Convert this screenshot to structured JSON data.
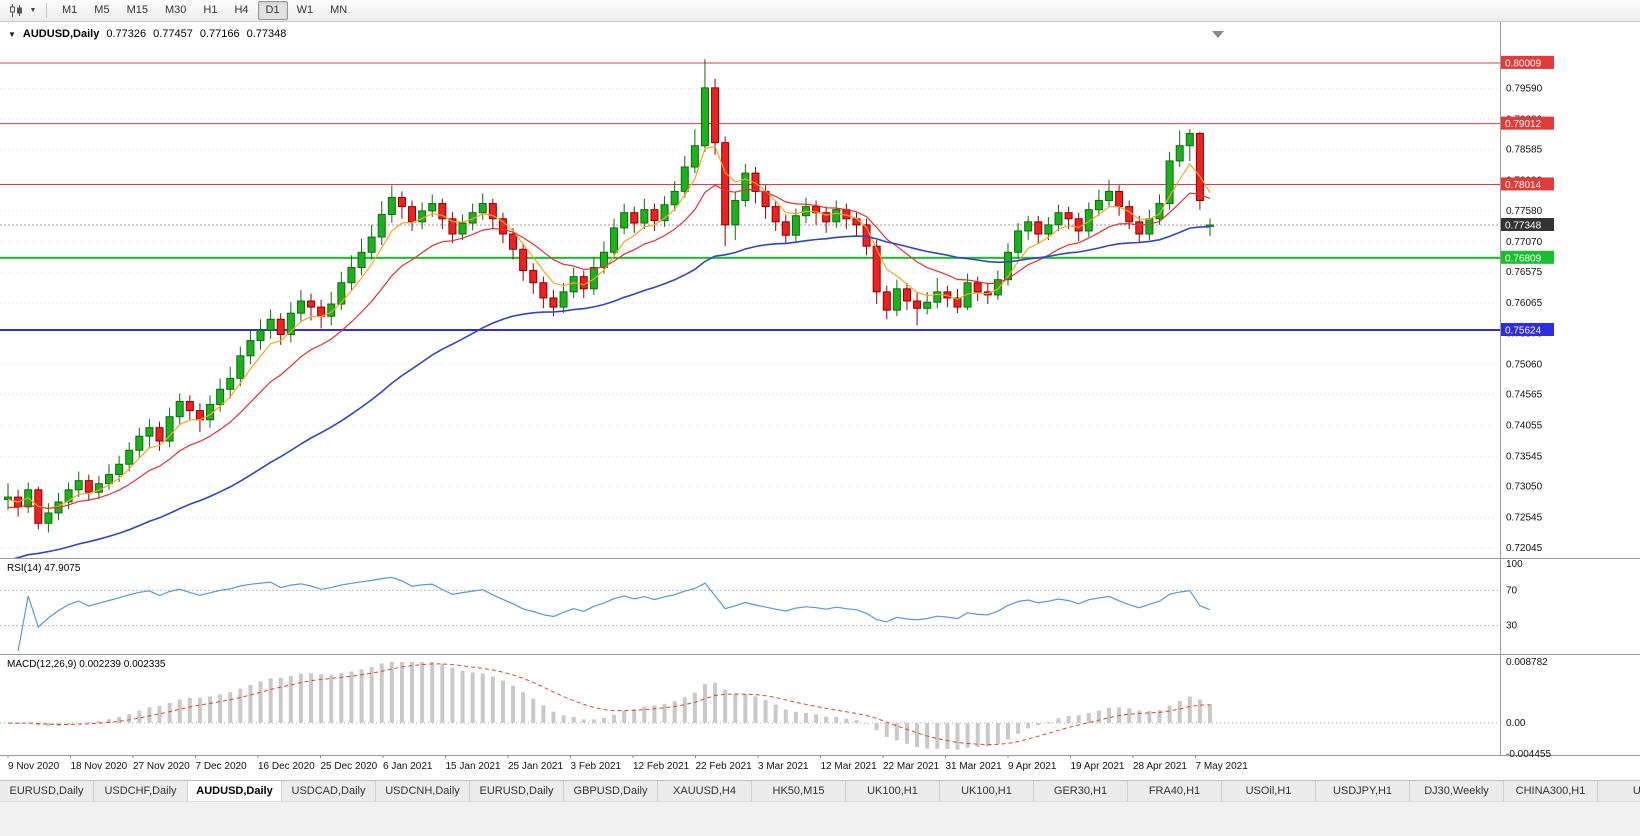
{
  "icons": {
    "menu_caret": "▼",
    "dropdown_arrow": "▼"
  },
  "colors": {
    "bull_fill": "#1CB21C",
    "bull_stroke": "#0E6B0E",
    "bear_fill": "#EE2020",
    "bear_stroke": "#8F0000",
    "ma_fast": "#F5A623",
    "ma_medium": "#E53030",
    "ma_slow": "#2E45C8",
    "rsi_line": "#5599DD",
    "macd_hist": "#C9C9C9",
    "macd_signal": "#E04040",
    "grid": "#E2E2E2",
    "axis_line": "#9A9A9A",
    "axis_text": "#111111",
    "resistance": "#E23B3B",
    "support_green": "#16C12C",
    "support_blue": "#2E2EE0",
    "current_badge": "#333333"
  },
  "toolbar": {
    "timeframes": [
      "M1",
      "M5",
      "M15",
      "M30",
      "H1",
      "H4",
      "D1",
      "W1",
      "MN"
    ],
    "active_timeframe": "D1"
  },
  "header": {
    "symbol": "AUDUSD,Daily",
    "open": "0.77326",
    "high": "0.77457",
    "low": "0.77166",
    "close": "0.77348"
  },
  "chart_data": {
    "type": "candlestick",
    "title": "AUDUSD,Daily",
    "x_labels": [
      "9 Nov 2020",
      "18 Nov 2020",
      "27 Nov 2020",
      "7 Dec 2020",
      "16 Dec 2020",
      "25 Dec 2020",
      "6 Jan 2021",
      "15 Jan 2021",
      "25 Jan 2021",
      "3 Feb 2021",
      "12 Feb 2021",
      "22 Feb 2021",
      "3 Mar 2021",
      "12 Mar 2021",
      "22 Mar 2021",
      "31 Mar 2021",
      "9 Apr 2021",
      "19 Apr 2021",
      "28 Apr 2021",
      "7 May 2021"
    ],
    "price_scale": [
      "0.79590",
      "0.79080",
      "0.78585",
      "0.78080",
      "0.77580",
      "0.77070",
      "0.76575",
      "0.76065",
      "0.75570",
      "0.75060",
      "0.74565",
      "0.74055",
      "0.73545",
      "0.73050",
      "0.72545",
      "0.72045"
    ],
    "levels": [
      {
        "label": "0.80009",
        "value": 0.80009,
        "color": "#E23B3B",
        "width": 1,
        "type": "resistance"
      },
      {
        "label": "0.79012",
        "value": 0.79012,
        "color": "#E23B3B",
        "width": 1,
        "type": "resistance"
      },
      {
        "label": "0.78014",
        "value": 0.78014,
        "color": "#E23B3B",
        "width": 1,
        "type": "resistance"
      },
      {
        "label": "0.76809",
        "value": 0.76809,
        "color": "#16C12C",
        "width": 2,
        "type": "support"
      },
      {
        "label": "0.75624",
        "value": 0.75624,
        "color": "#2E2EE0",
        "width": 2,
        "type": "support"
      }
    ],
    "current_price": {
      "label": "0.77348",
      "value": 0.77348
    },
    "moving_averages": [
      {
        "name": "fast",
        "period": 5,
        "color": "#F5A623",
        "seed": 0.7282,
        "width": 1.2
      },
      {
        "name": "medium",
        "period": 13,
        "color": "#E53030",
        "seed": 0.7268,
        "width": 1.2
      },
      {
        "name": "slow",
        "period": 45,
        "color": "#2E45C8",
        "seed": 0.718,
        "width": 1.6
      }
    ],
    "candles": [
      [
        0.7284,
        0.7311,
        0.7267,
        0.7288
      ],
      [
        0.7288,
        0.73,
        0.7256,
        0.7272
      ],
      [
        0.7272,
        0.7312,
        0.7262,
        0.73
      ],
      [
        0.73,
        0.7305,
        0.7235,
        0.7245
      ],
      [
        0.7245,
        0.7278,
        0.723,
        0.7262
      ],
      [
        0.7262,
        0.7295,
        0.725,
        0.728
      ],
      [
        0.728,
        0.7312,
        0.7268,
        0.73
      ],
      [
        0.73,
        0.733,
        0.7288,
        0.7315
      ],
      [
        0.7315,
        0.7325,
        0.7282,
        0.7296
      ],
      [
        0.7296,
        0.7323,
        0.7285,
        0.731
      ],
      [
        0.731,
        0.7342,
        0.73,
        0.7325
      ],
      [
        0.7325,
        0.7356,
        0.7313,
        0.7342
      ],
      [
        0.7342,
        0.7378,
        0.733,
        0.7365
      ],
      [
        0.7365,
        0.7402,
        0.7352,
        0.7388
      ],
      [
        0.7388,
        0.7416,
        0.737,
        0.7402
      ],
      [
        0.7402,
        0.7412,
        0.7364,
        0.738
      ],
      [
        0.738,
        0.7435,
        0.737,
        0.742
      ],
      [
        0.742,
        0.7458,
        0.7408,
        0.7445
      ],
      [
        0.7445,
        0.7455,
        0.7415,
        0.743
      ],
      [
        0.743,
        0.7442,
        0.7395,
        0.7415
      ],
      [
        0.7415,
        0.7455,
        0.7402,
        0.744
      ],
      [
        0.744,
        0.7483,
        0.7428,
        0.7465
      ],
      [
        0.7465,
        0.7502,
        0.745,
        0.7483
      ],
      [
        0.7483,
        0.7535,
        0.747,
        0.752
      ],
      [
        0.752,
        0.7562,
        0.7506,
        0.7545
      ],
      [
        0.7545,
        0.758,
        0.753,
        0.7562
      ],
      [
        0.7562,
        0.7596,
        0.7548,
        0.758
      ],
      [
        0.758,
        0.759,
        0.7538,
        0.7555
      ],
      [
        0.7555,
        0.7608,
        0.7542,
        0.759
      ],
      [
        0.759,
        0.7628,
        0.7576,
        0.761
      ],
      [
        0.761,
        0.7622,
        0.7578,
        0.76
      ],
      [
        0.76,
        0.7612,
        0.7565,
        0.7585
      ],
      [
        0.7585,
        0.7625,
        0.757,
        0.7605
      ],
      [
        0.7605,
        0.7658,
        0.7595,
        0.764
      ],
      [
        0.764,
        0.7685,
        0.7628,
        0.7665
      ],
      [
        0.7665,
        0.7712,
        0.7652,
        0.769
      ],
      [
        0.769,
        0.7735,
        0.7678,
        0.7715
      ],
      [
        0.7715,
        0.7774,
        0.7702,
        0.7752
      ],
      [
        0.7752,
        0.78,
        0.7738,
        0.778
      ],
      [
        0.778,
        0.779,
        0.7745,
        0.7765
      ],
      [
        0.7765,
        0.7775,
        0.7725,
        0.774
      ],
      [
        0.774,
        0.7772,
        0.7728,
        0.7758
      ],
      [
        0.7758,
        0.7785,
        0.7748,
        0.777
      ],
      [
        0.777,
        0.7778,
        0.7728,
        0.7745
      ],
      [
        0.7745,
        0.7756,
        0.7705,
        0.772
      ],
      [
        0.772,
        0.7752,
        0.771,
        0.7738
      ],
      [
        0.7738,
        0.777,
        0.7726,
        0.7755
      ],
      [
        0.7755,
        0.7787,
        0.7743,
        0.777
      ],
      [
        0.777,
        0.7778,
        0.773,
        0.7745
      ],
      [
        0.7745,
        0.7755,
        0.7705,
        0.772
      ],
      [
        0.772,
        0.773,
        0.7678,
        0.7695
      ],
      [
        0.7695,
        0.7705,
        0.7643,
        0.766
      ],
      [
        0.766,
        0.7672,
        0.7622,
        0.764
      ],
      [
        0.764,
        0.765,
        0.7598,
        0.7615
      ],
      [
        0.7615,
        0.7628,
        0.7585,
        0.76
      ],
      [
        0.76,
        0.764,
        0.759,
        0.7625
      ],
      [
        0.7625,
        0.7665,
        0.7615,
        0.765
      ],
      [
        0.765,
        0.766,
        0.7615,
        0.763
      ],
      [
        0.763,
        0.768,
        0.762,
        0.7665
      ],
      [
        0.7665,
        0.7708,
        0.7655,
        0.769
      ],
      [
        0.769,
        0.7745,
        0.768,
        0.773
      ],
      [
        0.773,
        0.777,
        0.772,
        0.7755
      ],
      [
        0.7755,
        0.7765,
        0.7722,
        0.7738
      ],
      [
        0.7738,
        0.7778,
        0.7728,
        0.776
      ],
      [
        0.776,
        0.777,
        0.7725,
        0.7742
      ],
      [
        0.7742,
        0.7782,
        0.7732,
        0.7768
      ],
      [
        0.7768,
        0.7807,
        0.7758,
        0.779
      ],
      [
        0.779,
        0.7848,
        0.778,
        0.783
      ],
      [
        0.783,
        0.7892,
        0.782,
        0.7865
      ],
      [
        0.7865,
        0.8007,
        0.7855,
        0.796
      ],
      [
        0.796,
        0.7975,
        0.785,
        0.787
      ],
      [
        0.787,
        0.788,
        0.77,
        0.7735
      ],
      [
        0.7735,
        0.779,
        0.771,
        0.7775
      ],
      [
        0.7775,
        0.7835,
        0.7765,
        0.782
      ],
      [
        0.782,
        0.783,
        0.777,
        0.779
      ],
      [
        0.779,
        0.78,
        0.7745,
        0.7765
      ],
      [
        0.7765,
        0.7775,
        0.7725,
        0.774
      ],
      [
        0.774,
        0.7752,
        0.7705,
        0.7718
      ],
      [
        0.7718,
        0.7762,
        0.7708,
        0.775
      ],
      [
        0.775,
        0.778,
        0.7738,
        0.7765
      ],
      [
        0.7765,
        0.7775,
        0.7735,
        0.7755
      ],
      [
        0.7755,
        0.7765,
        0.7722,
        0.774
      ],
      [
        0.774,
        0.7775,
        0.773,
        0.776
      ],
      [
        0.776,
        0.777,
        0.7728,
        0.7745
      ],
      [
        0.7745,
        0.7755,
        0.7715,
        0.7735
      ],
      [
        0.7735,
        0.7745,
        0.7685,
        0.77
      ],
      [
        0.77,
        0.771,
        0.7605,
        0.7625
      ],
      [
        0.7625,
        0.7635,
        0.758,
        0.7595
      ],
      [
        0.7595,
        0.7645,
        0.7585,
        0.763
      ],
      [
        0.763,
        0.764,
        0.7595,
        0.761
      ],
      [
        0.761,
        0.7625,
        0.757,
        0.7598
      ],
      [
        0.7598,
        0.7625,
        0.7588,
        0.7608
      ],
      [
        0.7608,
        0.7648,
        0.7598,
        0.7625
      ],
      [
        0.7625,
        0.7635,
        0.76,
        0.7615
      ],
      [
        0.7615,
        0.763,
        0.759,
        0.76
      ],
      [
        0.76,
        0.7655,
        0.7595,
        0.764
      ],
      [
        0.764,
        0.765,
        0.761,
        0.7625
      ],
      [
        0.7625,
        0.764,
        0.7605,
        0.762
      ],
      [
        0.762,
        0.766,
        0.7612,
        0.7645
      ],
      [
        0.7645,
        0.7705,
        0.7635,
        0.769
      ],
      [
        0.769,
        0.7738,
        0.768,
        0.7725
      ],
      [
        0.7725,
        0.775,
        0.771,
        0.774
      ],
      [
        0.774,
        0.775,
        0.7705,
        0.772
      ],
      [
        0.772,
        0.7748,
        0.771,
        0.7735
      ],
      [
        0.7735,
        0.7768,
        0.7725,
        0.7755
      ],
      [
        0.7755,
        0.7765,
        0.7728,
        0.7745
      ],
      [
        0.7745,
        0.7755,
        0.7708,
        0.7725
      ],
      [
        0.7725,
        0.7772,
        0.7715,
        0.776
      ],
      [
        0.776,
        0.7793,
        0.775,
        0.7775
      ],
      [
        0.7775,
        0.7809,
        0.7765,
        0.779
      ],
      [
        0.779,
        0.78,
        0.775,
        0.7765
      ],
      [
        0.7765,
        0.7775,
        0.7728,
        0.774
      ],
      [
        0.774,
        0.775,
        0.7705,
        0.772
      ],
      [
        0.772,
        0.776,
        0.771,
        0.7745
      ],
      [
        0.7745,
        0.7785,
        0.7735,
        0.777
      ],
      [
        0.777,
        0.7855,
        0.776,
        0.784
      ],
      [
        0.784,
        0.789,
        0.783,
        0.7865
      ],
      [
        0.7865,
        0.7892,
        0.784,
        0.7885
      ],
      [
        0.7885,
        0.7888,
        0.776,
        0.7775
      ],
      [
        0.77326,
        0.77457,
        0.77166,
        0.77348
      ]
    ],
    "indicators": {
      "rsi": {
        "label": "RSI(14) 47.9075",
        "period": 14,
        "value": "47.9075",
        "levels": [
          70,
          30
        ],
        "scale": [
          "100",
          "70",
          "30"
        ]
      },
      "macd": {
        "label": "MACD(12,26,9) 0.002239 0.002335",
        "fast": 12,
        "slow": 26,
        "signal": 9,
        "values": "0.002239 0.002335",
        "scale": [
          "0.008782",
          "0.00",
          "-0.004455"
        ]
      }
    }
  },
  "tabs": {
    "items": [
      "EURUSD,Daily",
      "USDCHF,Daily",
      "AUDUSD,Daily",
      "USDCAD,Daily",
      "USDCNH,Daily",
      "EURUSD,Daily",
      "GBPUSD,Daily",
      "XAUUSD,H4",
      "HK50,M15",
      "UK100,H1",
      "UK100,H1",
      "GER30,H1",
      "FRA40,H1",
      "USOil,H1",
      "USDJPY,H1",
      "DJ30,Weekly",
      "CHINA300,H1",
      "USC"
    ],
    "active_index": 2
  }
}
